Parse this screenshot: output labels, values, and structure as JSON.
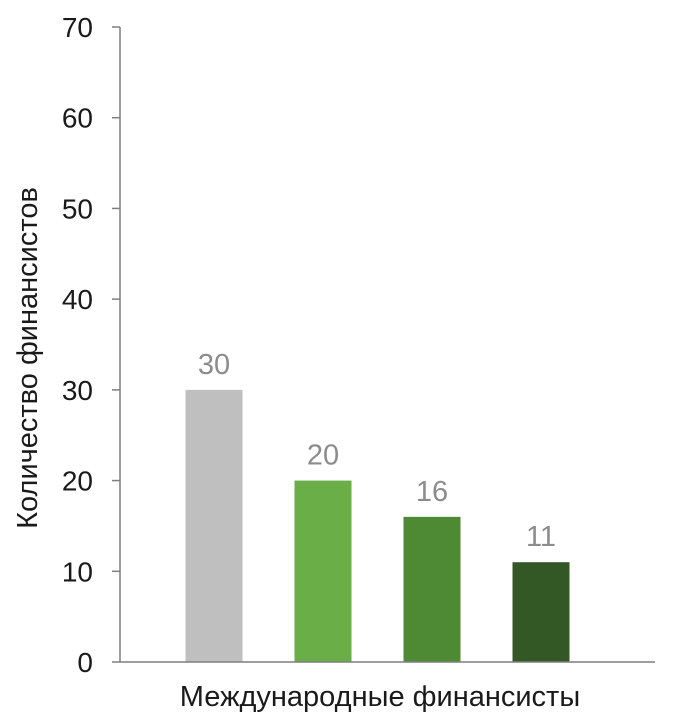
{
  "chart_data": {
    "type": "bar",
    "categories": [
      "",
      "",
      "",
      ""
    ],
    "values": [
      30,
      20,
      16,
      11
    ],
    "data_labels": [
      "30",
      "20",
      "16",
      "11"
    ],
    "bar_colors": [
      "#bfbfbf",
      "#6aae47",
      "#4e8a33",
      "#345726"
    ],
    "title": "",
    "xlabel": "Международные финансисты",
    "ylabel": "Количество финансистов",
    "ylim": [
      0,
      70
    ],
    "yticks": [
      0,
      10,
      20,
      30,
      40,
      50,
      60,
      70
    ],
    "grid": false,
    "legend": "none"
  },
  "colors": {
    "axis": "#7f7f7f",
    "label_text": "#1a1a1a",
    "data_label_text": "#8c8c8c"
  }
}
